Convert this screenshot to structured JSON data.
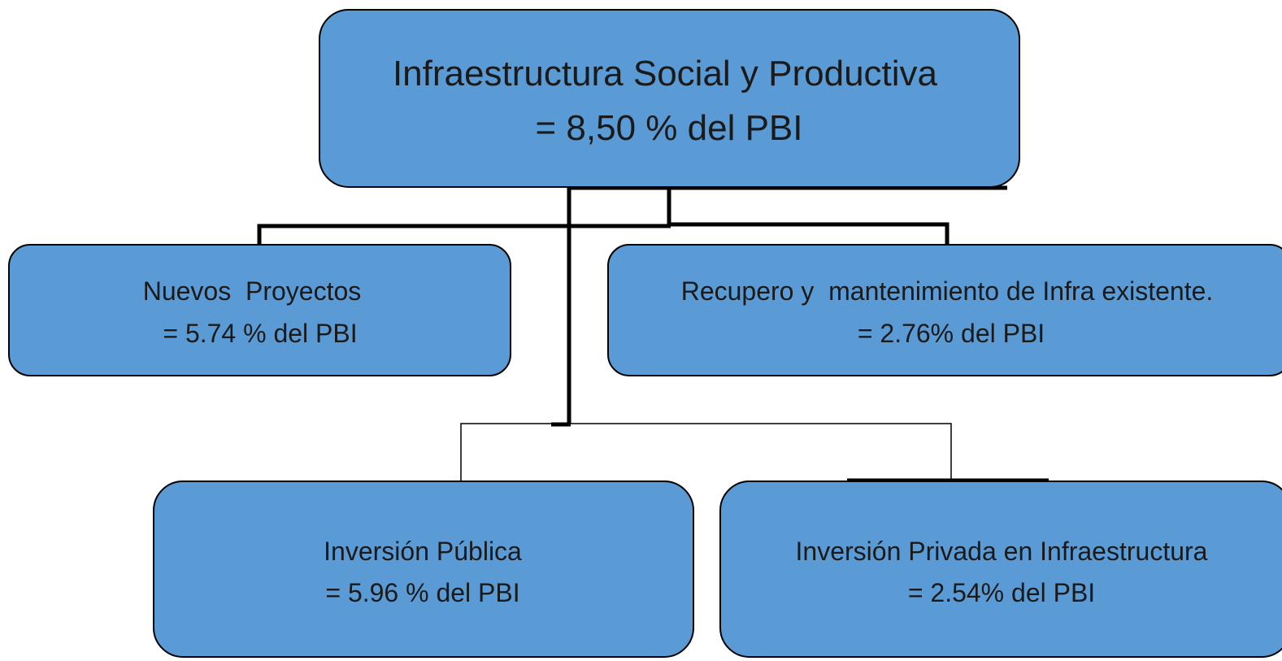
{
  "nodes": [
    {
      "lines": [
        "Infraestructura Social y Productiva",
        "= 8,50 % del PBI"
      ]
    },
    {
      "lines": [
        "Nuevos  Proyectos",
        "= 5.74 % del PBI"
      ]
    },
    {
      "lines": [
        "Recupero y  mantenimiento de Infra existente.",
        "= 2.76% del PBI"
      ]
    },
    {
      "lines": [
        "Inversión Pública",
        "= 5.96 % del PBI"
      ]
    },
    {
      "lines": [
        "Inversión Privada en Infraestructura",
        "= 2.54% del PBI"
      ]
    }
  ]
}
